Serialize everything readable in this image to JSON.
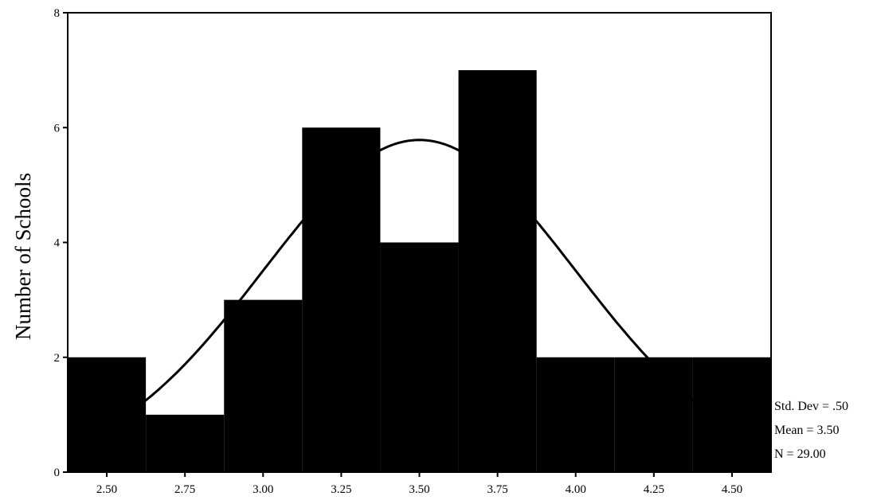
{
  "chart_data": {
    "type": "bar",
    "subtype": "histogram",
    "ylabel": "Number of Schools",
    "xlabel": "",
    "title": "",
    "bin_centers": [
      2.5,
      2.75,
      3.0,
      3.25,
      3.5,
      3.75,
      4.0,
      4.25,
      4.5
    ],
    "bin_width": 0.25,
    "values": [
      2,
      1,
      3,
      6,
      4,
      7,
      2,
      2,
      2
    ],
    "x_tick_labels": [
      "2.50",
      "2.75",
      "3.00",
      "3.25",
      "3.50",
      "3.75",
      "4.00",
      "4.25",
      "4.50"
    ],
    "y_ticks": [
      0,
      2,
      4,
      6,
      8
    ],
    "ylim": [
      0,
      8
    ],
    "xlim": [
      2.375,
      4.625
    ],
    "bar_color": "#000000",
    "normal_curve": {
      "mean": 3.5,
      "std_dev": 0.5,
      "n": 29,
      "bin_width": 0.25
    },
    "stats": {
      "std_dev": "Std. Dev = .50",
      "mean": "Mean = 3.50",
      "n": "N = 29.00"
    }
  }
}
